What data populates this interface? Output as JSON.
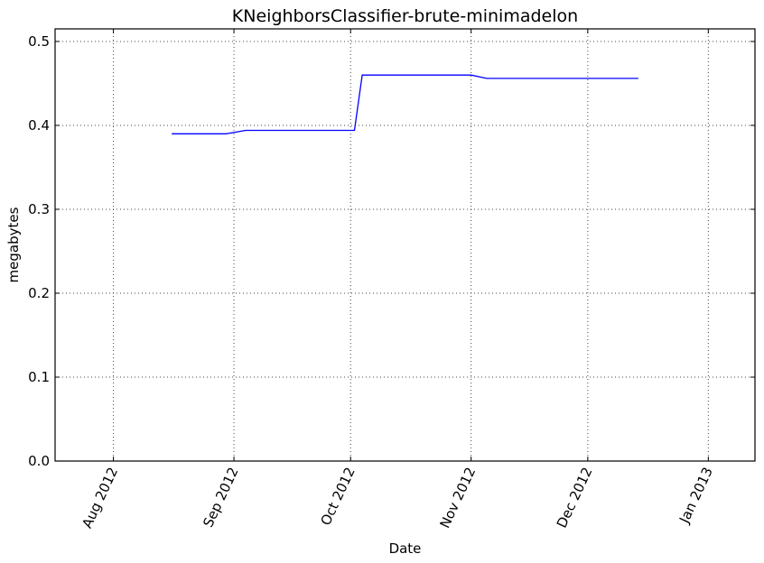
{
  "chart_data": {
    "type": "line",
    "title": "KNeighborsClassifier-brute-minimadelon",
    "xlabel": "Date",
    "ylabel": "megabytes",
    "x_ticks": [
      "Aug 2012",
      "Sep 2012",
      "Oct 2012",
      "Nov 2012",
      "Dec 2012",
      "Jan 2013"
    ],
    "y_ticks": [
      "0.0",
      "0.1",
      "0.2",
      "0.3",
      "0.4",
      "0.5"
    ],
    "xlim": [
      "2012-07-17",
      "2013-01-13"
    ],
    "ylim": [
      0,
      0.515
    ],
    "grid": true,
    "series": [
      {
        "color": "#0000ff",
        "points": [
          {
            "x": "2012-08-16",
            "y": 0.39
          },
          {
            "x": "2012-08-30",
            "y": 0.39
          },
          {
            "x": "2012-09-04",
            "y": 0.394
          },
          {
            "x": "2012-10-02",
            "y": 0.394
          },
          {
            "x": "2012-10-04",
            "y": 0.46
          },
          {
            "x": "2012-11-01",
            "y": 0.46
          },
          {
            "x": "2012-11-05",
            "y": 0.456
          },
          {
            "x": "2012-12-14",
            "y": 0.456
          }
        ]
      }
    ]
  }
}
